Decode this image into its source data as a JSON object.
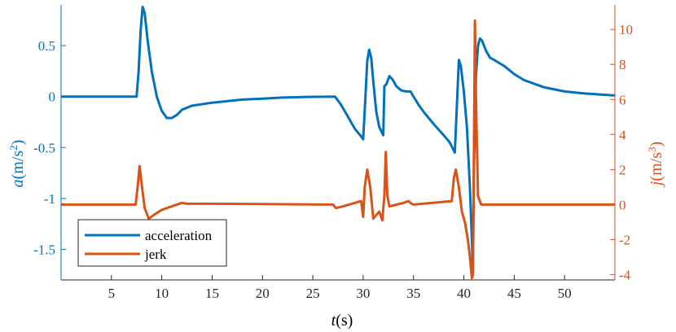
{
  "chart_data": {
    "type": "line",
    "title": "",
    "xlabel": {
      "var": "t",
      "unit": "(s)"
    },
    "ylabel_left": {
      "var": "a",
      "unit": "(m/s",
      "sup": "2",
      "close": ")"
    },
    "ylabel_right": {
      "var": "j",
      "unit": "(m/s",
      "sup": "3",
      "close": ")"
    },
    "xlim": [
      0,
      55
    ],
    "ylim_left": [
      -1.8,
      0.9
    ],
    "ylim_right": [
      -4.3,
      11.4
    ],
    "xticks": [
      5,
      10,
      15,
      20,
      25,
      30,
      35,
      40,
      45,
      50
    ],
    "yticks_left": [
      0.5,
      0,
      -0.5,
      -1,
      -1.5
    ],
    "yticks_left_labels": [
      "0.5",
      "0",
      "-0.5",
      "-1",
      "-1.5"
    ],
    "yticks_right": [
      10,
      8,
      6,
      4,
      2,
      0,
      -2,
      -4
    ],
    "yticks_right_labels": [
      "10",
      "8",
      "6",
      "4",
      "2",
      "0",
      "-2",
      "-4"
    ],
    "grid": false,
    "legend": {
      "placement": "bottom-left"
    },
    "colors": {
      "acceleration": "#0072BD",
      "jerk": "#D95319"
    },
    "series": [
      {
        "name": "acceleration",
        "axis": "left",
        "x": [
          0,
          7.5,
          7.7,
          7.9,
          8.1,
          8.3,
          8.6,
          9.0,
          9.5,
          10.0,
          10.5,
          11.0,
          11.5,
          12.0,
          13.0,
          15.0,
          18.0,
          20.0,
          22.0,
          25.0,
          27.2,
          27.8,
          28.5,
          29.2,
          29.8,
          30.0,
          30.2,
          30.4,
          30.6,
          30.8,
          31.0,
          31.3,
          31.6,
          32.0,
          32.1,
          32.3,
          32.6,
          32.9,
          33.3,
          33.8,
          34.3,
          34.7,
          35.0,
          35.5,
          36.0,
          37.0,
          38.0,
          38.6,
          38.9,
          39.1,
          39.3,
          39.5,
          39.7,
          40.0,
          40.3,
          40.6,
          40.8,
          40.9,
          41.0,
          41.2,
          41.4,
          41.6,
          41.8,
          42.2,
          42.6,
          43.0,
          43.5,
          44.0,
          45.0,
          46.0,
          48.0,
          50.0,
          52.0,
          55.0
        ],
        "y": [
          0,
          0,
          0.25,
          0.65,
          0.88,
          0.82,
          0.55,
          0.25,
          0.0,
          -0.14,
          -0.21,
          -0.21,
          -0.18,
          -0.13,
          -0.09,
          -0.06,
          -0.03,
          -0.02,
          -0.01,
          -0.003,
          0,
          -0.08,
          -0.2,
          -0.32,
          -0.39,
          -0.42,
          -0.05,
          0.35,
          0.46,
          0.38,
          0.15,
          -0.15,
          -0.3,
          -0.38,
          0.1,
          0.12,
          0.2,
          0.17,
          0.1,
          0.06,
          0.05,
          0.05,
          0.0,
          -0.08,
          -0.15,
          -0.27,
          -0.38,
          -0.45,
          -0.51,
          -0.55,
          -0.1,
          0.36,
          0.3,
          0.05,
          -0.3,
          -0.9,
          -1.4,
          -1.72,
          -0.7,
          0.2,
          0.5,
          0.57,
          0.55,
          0.45,
          0.38,
          0.36,
          0.33,
          0.3,
          0.22,
          0.16,
          0.09,
          0.05,
          0.03,
          0.01
        ]
      },
      {
        "name": "jerk",
        "axis": "right",
        "x": [
          0,
          7.4,
          7.6,
          7.8,
          8.0,
          8.3,
          8.7,
          9.2,
          10.0,
          11.0,
          12.0,
          12.5,
          14.0,
          20.0,
          27.0,
          27.3,
          28.0,
          29.8,
          30.0,
          30.15,
          30.4,
          30.7,
          31.0,
          31.3,
          31.6,
          31.9,
          32.1,
          32.25,
          32.4,
          32.6,
          33.0,
          34.0,
          34.5,
          34.8,
          35.0,
          38.8,
          39.0,
          39.2,
          39.5,
          39.8,
          40.1,
          40.4,
          40.6,
          40.8,
          40.9,
          41.0,
          41.1,
          41.2,
          41.4,
          41.7,
          42.0,
          43.0,
          45.0,
          50.0,
          55.0
        ],
        "y": [
          0,
          0,
          1.0,
          2.2,
          1.2,
          -0.2,
          -0.8,
          -0.6,
          -0.3,
          -0.1,
          0.1,
          0.05,
          0.05,
          0.03,
          0,
          -0.2,
          -0.1,
          0.2,
          -0.7,
          1.0,
          2.0,
          1.0,
          -0.8,
          -0.6,
          -0.4,
          -0.9,
          0.5,
          3.0,
          0.5,
          -0.1,
          -0.05,
          0.1,
          0.2,
          0.05,
          0.0,
          0.2,
          1.5,
          2.0,
          1.0,
          -0.4,
          -1.0,
          -2.0,
          -3.0,
          -4.2,
          -4.0,
          3.0,
          10.5,
          6.0,
          0.5,
          0.0,
          0.0,
          0.0,
          0.0,
          0.0,
          0.0
        ]
      }
    ]
  }
}
